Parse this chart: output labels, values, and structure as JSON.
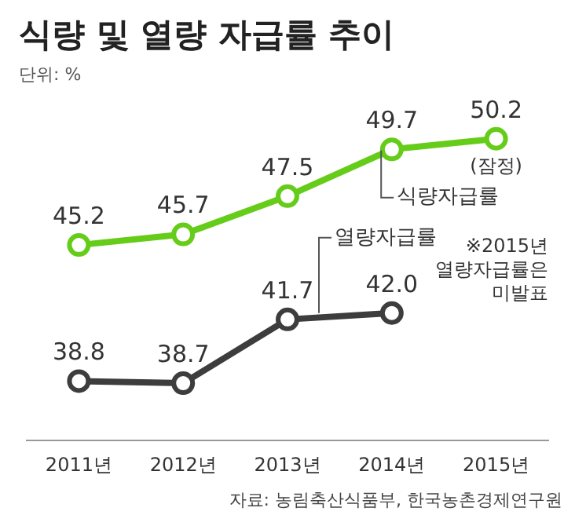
{
  "chart_data": {
    "type": "line",
    "title": "식량 및 열량 자급률 추이",
    "categories": [
      "2011년",
      "2012년",
      "2013년",
      "2014년",
      "2015년"
    ],
    "series": [
      {
        "name": "식량자급률",
        "color": "#66cc1a",
        "values": [
          45.2,
          45.7,
          47.5,
          49.7,
          50.2
        ],
        "value_labels": [
          "45.2",
          "45.7",
          "47.5",
          "49.7",
          "50.2"
        ]
      },
      {
        "name": "열량자급률",
        "color": "#3d3d3d",
        "values": [
          38.8,
          38.7,
          41.7,
          42.0,
          null
        ],
        "value_labels": [
          "38.8",
          "38.7",
          "41.7",
          "42.0",
          null
        ]
      }
    ],
    "tick_labels": "x",
    "grid": false,
    "legend": false,
    "marker": "circle",
    "line_style": "solid",
    "annotations": [
      "단위: %",
      {
        "text": "(잠정)",
        "x": "2015년",
        "y": 50.2
      },
      "※2015년 열량자급률은 미발표",
      "자료: 농림축산식품부, 한국농촌경제연구원"
    ]
  }
}
